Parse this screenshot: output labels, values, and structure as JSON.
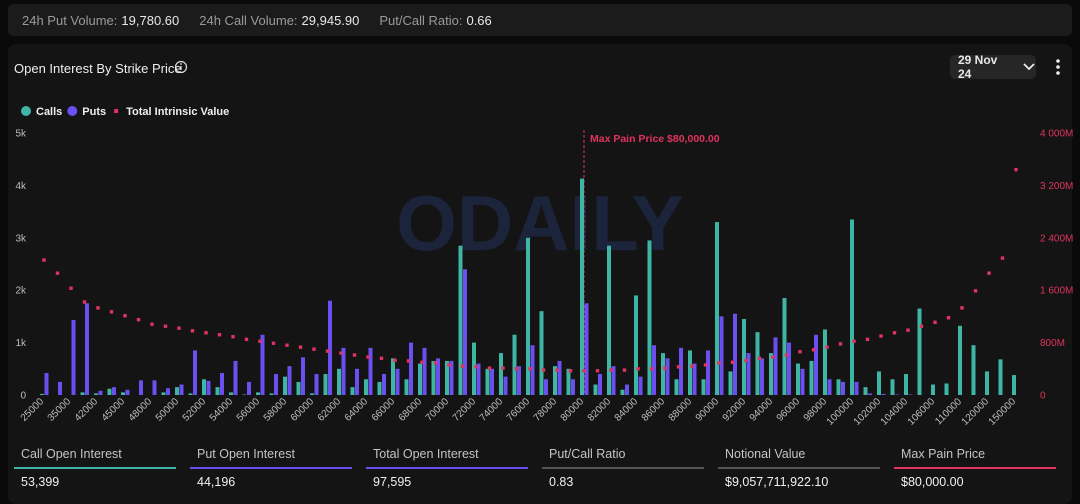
{
  "top_bar": [
    {
      "label": "24h Put Volume:",
      "value": "19,780.60"
    },
    {
      "label": "24h Call Volume:",
      "value": "29,945.90"
    },
    {
      "label": "Put/Call Ratio:",
      "value": "0.66"
    }
  ],
  "header": {
    "title": "Open Interest By Strike Price",
    "date": "29 Nov 24",
    "watermark": "ODAILY"
  },
  "chart_data": {
    "type": "bar",
    "categories": [
      "25000",
      null,
      "35000",
      null,
      "42000",
      null,
      "45000",
      null,
      "48000",
      null,
      "50000",
      null,
      "52000",
      null,
      "54000",
      null,
      "56000",
      null,
      "58000",
      null,
      "60000",
      null,
      "62000",
      null,
      "64000",
      null,
      "66000",
      null,
      "68000",
      null,
      "70000",
      null,
      "72000",
      null,
      "74000",
      null,
      "76000",
      null,
      "78000",
      null,
      "80000",
      null,
      "82000",
      null,
      "84000",
      null,
      "86000",
      null,
      "88000",
      null,
      "90000",
      null,
      "92000",
      null,
      "94000",
      null,
      "96000",
      null,
      "98000",
      null,
      "100000",
      null,
      "102000",
      null,
      "104000",
      null,
      "106000",
      null,
      "110000",
      null,
      "120000",
      null,
      "150000"
    ],
    "series": [
      {
        "name": "Calls",
        "color": "#3fb5a3",
        "type": "bar",
        "axis": "y",
        "values": [
          20,
          0,
          0,
          50,
          30,
          120,
          50,
          0,
          0,
          50,
          150,
          30,
          300,
          150,
          50,
          10,
          50,
          30,
          350,
          250,
          30,
          400,
          500,
          150,
          300,
          250,
          700,
          300,
          600,
          650,
          650,
          2850,
          1000,
          500,
          800,
          1150,
          3000,
          1600,
          550,
          500,
          4130,
          200,
          2850,
          100,
          1900,
          2950,
          800,
          300,
          850,
          300,
          3300,
          450,
          1450,
          1200,
          800,
          1850,
          600,
          650,
          1250,
          300,
          3350,
          150,
          450,
          300,
          400,
          1650,
          200,
          220,
          1320,
          950,
          450,
          680,
          380
        ]
      },
      {
        "name": "Puts",
        "color": "#6b4ff0",
        "type": "bar",
        "axis": "y",
        "values": [
          420,
          250,
          1430,
          1750,
          80,
          150,
          100,
          280,
          280,
          130,
          200,
          850,
          270,
          420,
          650,
          250,
          1150,
          400,
          550,
          720,
          400,
          1800,
          900,
          500,
          900,
          400,
          500,
          1000,
          900,
          700,
          650,
          2400,
          600,
          500,
          350,
          550,
          950,
          300,
          650,
          300,
          1750,
          400,
          550,
          200,
          350,
          950,
          700,
          900,
          600,
          850,
          1500,
          1550,
          800,
          700,
          1100,
          1000,
          500,
          1150,
          300,
          250,
          250,
          30,
          20,
          10,
          10,
          0,
          0,
          0,
          0,
          0,
          0,
          0,
          0
        ]
      },
      {
        "name": "Total Intrinsic Value",
        "color": "#e0335e",
        "type": "dot",
        "axis": "y2",
        "values": [
          2060,
          1860,
          1630,
          1420,
          1330,
          1270,
          1210,
          1150,
          1080,
          1050,
          1020,
          980,
          950,
          920,
          890,
          850,
          820,
          790,
          760,
          730,
          700,
          670,
          640,
          610,
          580,
          560,
          530,
          520,
          500,
          490,
          460,
          440,
          430,
          410,
          410,
          400,
          400,
          380,
          380,
          370,
          370,
          370,
          380,
          380,
          400,
          400,
          410,
          430,
          440,
          460,
          490,
          500,
          530,
          560,
          580,
          610,
          660,
          690,
          730,
          780,
          820,
          850,
          900,
          950,
          990,
          1050,
          1110,
          1180,
          1330,
          1590,
          1860,
          2090,
          3440
        ]
      }
    ],
    "ylim": [
      0,
      5000
    ],
    "yticks": [
      0,
      {
        "value": 1000,
        "label": "1k"
      },
      {
        "value": 2000,
        "label": "2k"
      },
      {
        "value": 3000,
        "label": "3k"
      },
      {
        "value": 4000,
        "label": "4k"
      },
      {
        "value": 5000,
        "label": "5k"
      }
    ],
    "y2lim": [
      0,
      4000
    ],
    "y2ticks": [
      0,
      {
        "value": 800,
        "label": "800M"
      },
      {
        "value": 1600,
        "label": "1 600M"
      },
      {
        "value": 2400,
        "label": "2 400M"
      },
      {
        "value": 3200,
        "label": "3 200M"
      },
      {
        "value": 4000,
        "label": "4 000M"
      }
    ],
    "grid": false,
    "legend": "top-left",
    "annotations": [
      {
        "text": "Max Pain Price $80,000.00",
        "x": "80000",
        "color": "#e0335e"
      }
    ]
  },
  "stats": [
    {
      "label": "Call Open Interest",
      "value": "53,399",
      "color": "#3fb5a3"
    },
    {
      "label": "Put Open Interest",
      "value": "44,196",
      "color": "#6b4ff0"
    },
    {
      "label": "Total Open Interest",
      "value": "97,595",
      "color": "#6b4ff0"
    },
    {
      "label": "Put/Call Ratio",
      "value": "0.83",
      "color": "#555555"
    },
    {
      "label": "Notional Value",
      "value": "$9,057,711,922.10",
      "color": "#555555"
    },
    {
      "label": "Max Pain Price",
      "value": "$80,000.00",
      "color": "#e0335e"
    }
  ]
}
